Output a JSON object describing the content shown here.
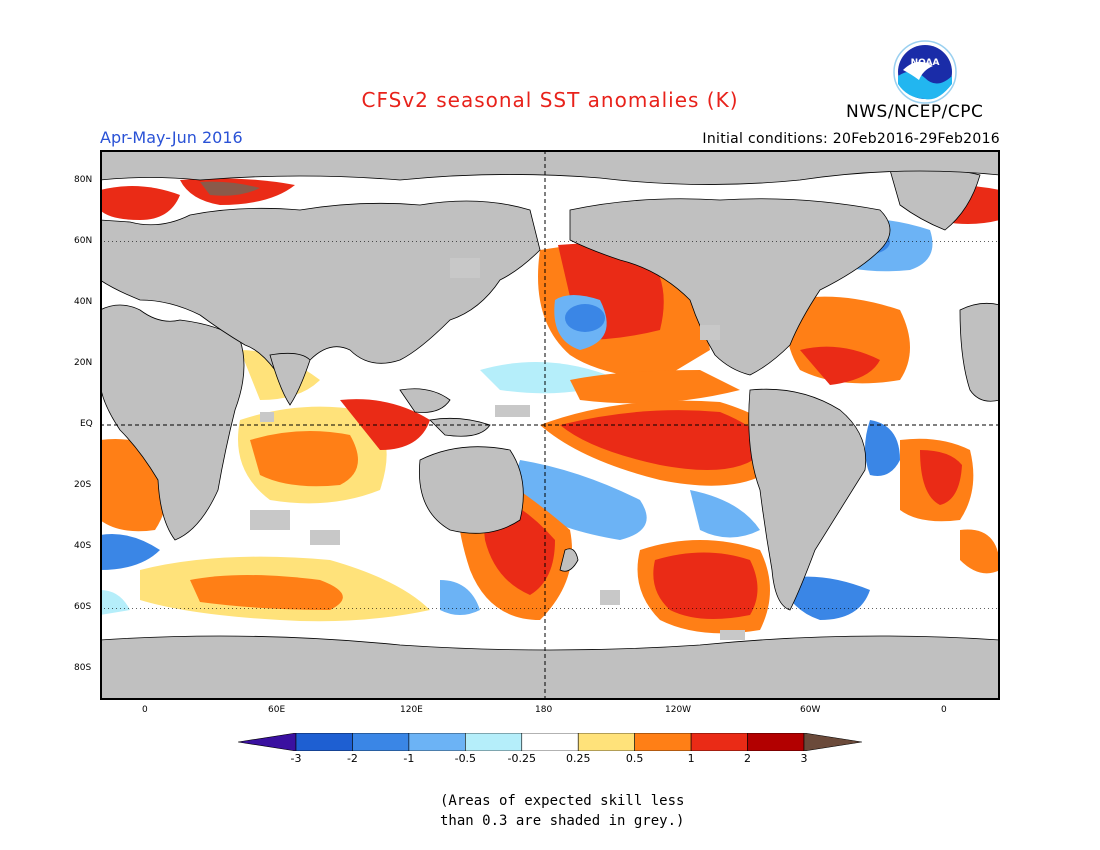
{
  "title": "CFSv2 seasonal SST anomalies (K)",
  "org": "NWS/NCEP/CPC",
  "period": "Apr-May-Jun 2016",
  "initial_conditions": "Initial conditions: 20Feb2016-29Feb2016",
  "logo_text": "NOAA",
  "latitude_labels": [
    "80N",
    "60N",
    "40N",
    "20N",
    "EQ",
    "20S",
    "40S",
    "60S",
    "80S"
  ],
  "longitude_labels": [
    "0",
    "60E",
    "120E",
    "180",
    "120W",
    "60W",
    "0"
  ],
  "colorbar": {
    "labels": [
      "-3",
      "-2",
      "-1",
      "-0.5",
      "-0.25",
      "0.25",
      "0.5",
      "1",
      "2",
      "3"
    ],
    "colors": [
      "#3a10a0",
      "#1e5fd2",
      "#3a86e6",
      "#6cb3f5",
      "#b5eefa",
      "#ffffff",
      "#ffe27a",
      "#ff7f16",
      "#ea2b16",
      "#b20000",
      "#6b4a3a"
    ]
  },
  "colors": {
    "land": "#c0c0c0",
    "skill_grey": "#c8c8c8",
    "title_red": "#e8221b",
    "period_blue": "#2a52d6"
  },
  "note": {
    "line1": "(Areas of expected skill less",
    "line2": "than 0.3 are shaded in grey.)"
  }
}
